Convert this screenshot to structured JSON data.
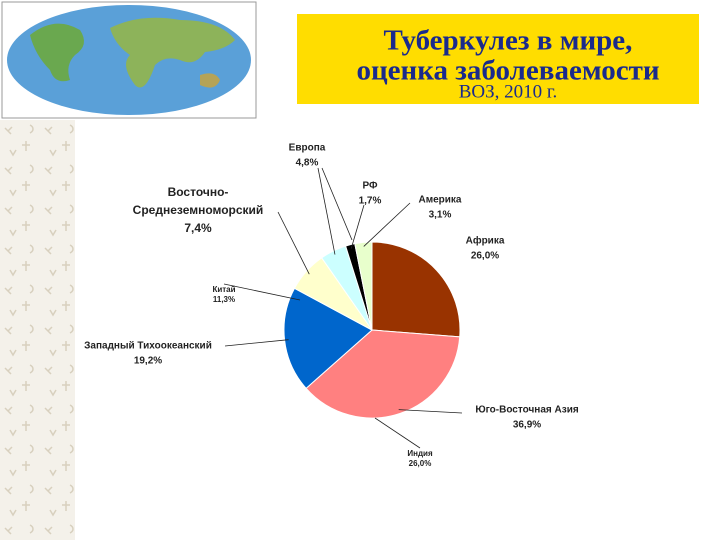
{
  "chart_data": {
    "type": "pie",
    "title": "Туберкулез в мире, оценка заболеваемости",
    "subtitle": "ВОЗ, 2010 г.",
    "categories": [
      "Африка",
      "Юго-Восточная Азия",
      "Западный Тихоокеанский",
      "Восточно-Среднеземноморский",
      "Европа",
      "РФ",
      "Америка"
    ],
    "values": [
      26.0,
      36.9,
      19.2,
      7.4,
      4.8,
      1.7,
      3.1
    ],
    "value_labels": [
      "26,0%",
      "36,9%",
      "19,2%",
      "7,4%",
      "4,8%",
      "1,7%",
      "3,1%"
    ],
    "colors": [
      "#993300",
      "#ff8080",
      "#0066cc",
      "#ffffcc",
      "#ccffff",
      "#000000",
      "#e8ffcc"
    ],
    "annotations": [
      {
        "text": "Индия",
        "label": "26,0%"
      },
      {
        "text": "Китай",
        "label": "11,3%"
      }
    ]
  }
}
